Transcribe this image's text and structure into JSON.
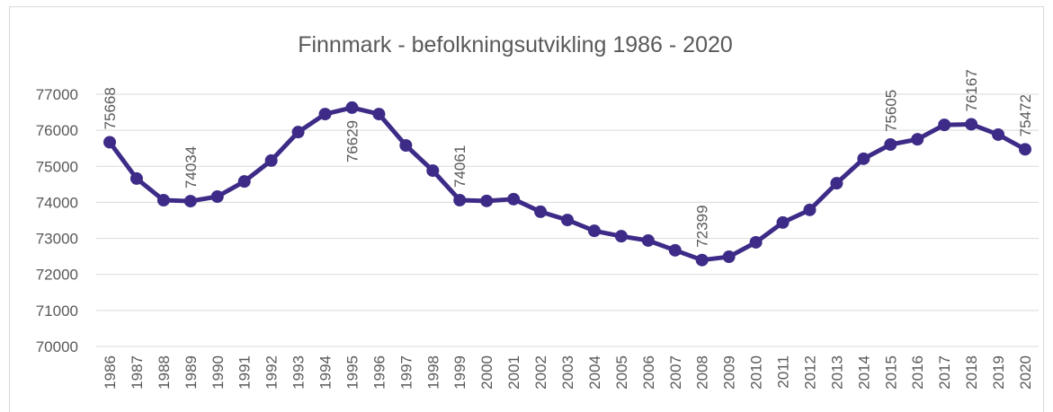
{
  "chart_data": {
    "type": "line",
    "title": "Finnmark - befolkningsutvikling 1986 - 2020",
    "categories": [
      "1986",
      "1987",
      "1988",
      "1989",
      "1990",
      "1991",
      "1992",
      "1993",
      "1994",
      "1995",
      "1996",
      "1997",
      "1998",
      "1999",
      "2000",
      "2001",
      "2002",
      "2003",
      "2004",
      "2005",
      "2006",
      "2007",
      "2008",
      "2009",
      "2010",
      "2011",
      "2012",
      "2013",
      "2014",
      "2015",
      "2016",
      "2017",
      "2018",
      "2019",
      "2020"
    ],
    "series": [
      {
        "name": "Finnmark",
        "color": "#3d2b87",
        "values": [
          75668,
          74660,
          74060,
          74034,
          74160,
          74580,
          75160,
          75950,
          76450,
          76629,
          76450,
          75580,
          74880,
          74061,
          74040,
          74090,
          73740,
          73510,
          73210,
          73060,
          72940,
          72670,
          72399,
          72490,
          72890,
          73440,
          73790,
          74530,
          75210,
          75605,
          75750,
          76150,
          76167,
          75880,
          75472
        ],
        "value_labels": [
          "75668",
          null,
          null,
          "74034",
          null,
          null,
          null,
          null,
          null,
          "76629",
          null,
          null,
          null,
          "74061",
          null,
          null,
          null,
          null,
          null,
          null,
          null,
          null,
          "72399",
          null,
          null,
          null,
          null,
          null,
          null,
          "75605",
          null,
          null,
          "76167",
          null,
          "75472"
        ]
      }
    ],
    "ylim": [
      70000,
      77000
    ],
    "yticks": [
      70000,
      71000,
      72000,
      73000,
      74000,
      75000,
      76000,
      77000
    ],
    "grid": true
  }
}
